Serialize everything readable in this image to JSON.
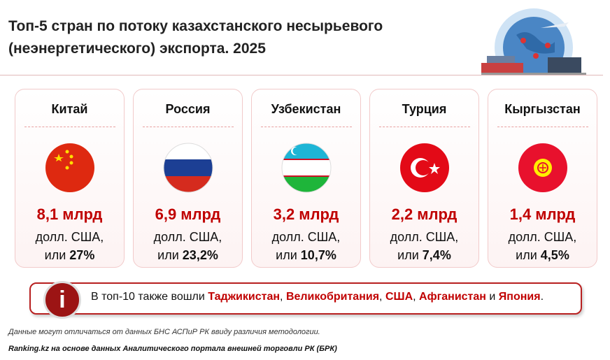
{
  "header": {
    "title_line1": "Топ-5 стран по потоку казахстанского несырьевого",
    "title_line2": "(неэнергетического) экспорта. 2025"
  },
  "cards": [
    {
      "country": "Китай",
      "amount": "8,1 млрд",
      "unit": "долл. США,",
      "share_prefix": "или",
      "share": "27%"
    },
    {
      "country": "Россия",
      "amount": "6,9 млрд",
      "unit": "долл. США,",
      "share_prefix": "или",
      "share": "23,2%"
    },
    {
      "country": "Узбекистан",
      "amount": "3,2 млрд",
      "unit": "долл. США,",
      "share_prefix": "или",
      "share": "10,7%"
    },
    {
      "country": "Турция",
      "amount": "2,2 млрд",
      "unit": "долл. США,",
      "share_prefix": "или",
      "share": "7,4%"
    },
    {
      "country": "Кыргызстан",
      "amount": "1,4 млрд",
      "unit": "долл. США,",
      "share_prefix": "или",
      "share": "4,5%"
    }
  ],
  "info": {
    "icon": "i",
    "lead": "В топ-10 также вошли",
    "countries": [
      "Таджикистан",
      "Великобритания",
      "США",
      "Афганистан",
      "Япония"
    ],
    "separator": ",",
    "conjunction": "и",
    "end": "."
  },
  "footer": {
    "note": "Данные могут отличаться от данных БНС АСПиР РК ввиду различия методологии.",
    "source": "Ranking.kz на основе данных Аналитического портала внешней торговли РК (БРК)"
  }
}
